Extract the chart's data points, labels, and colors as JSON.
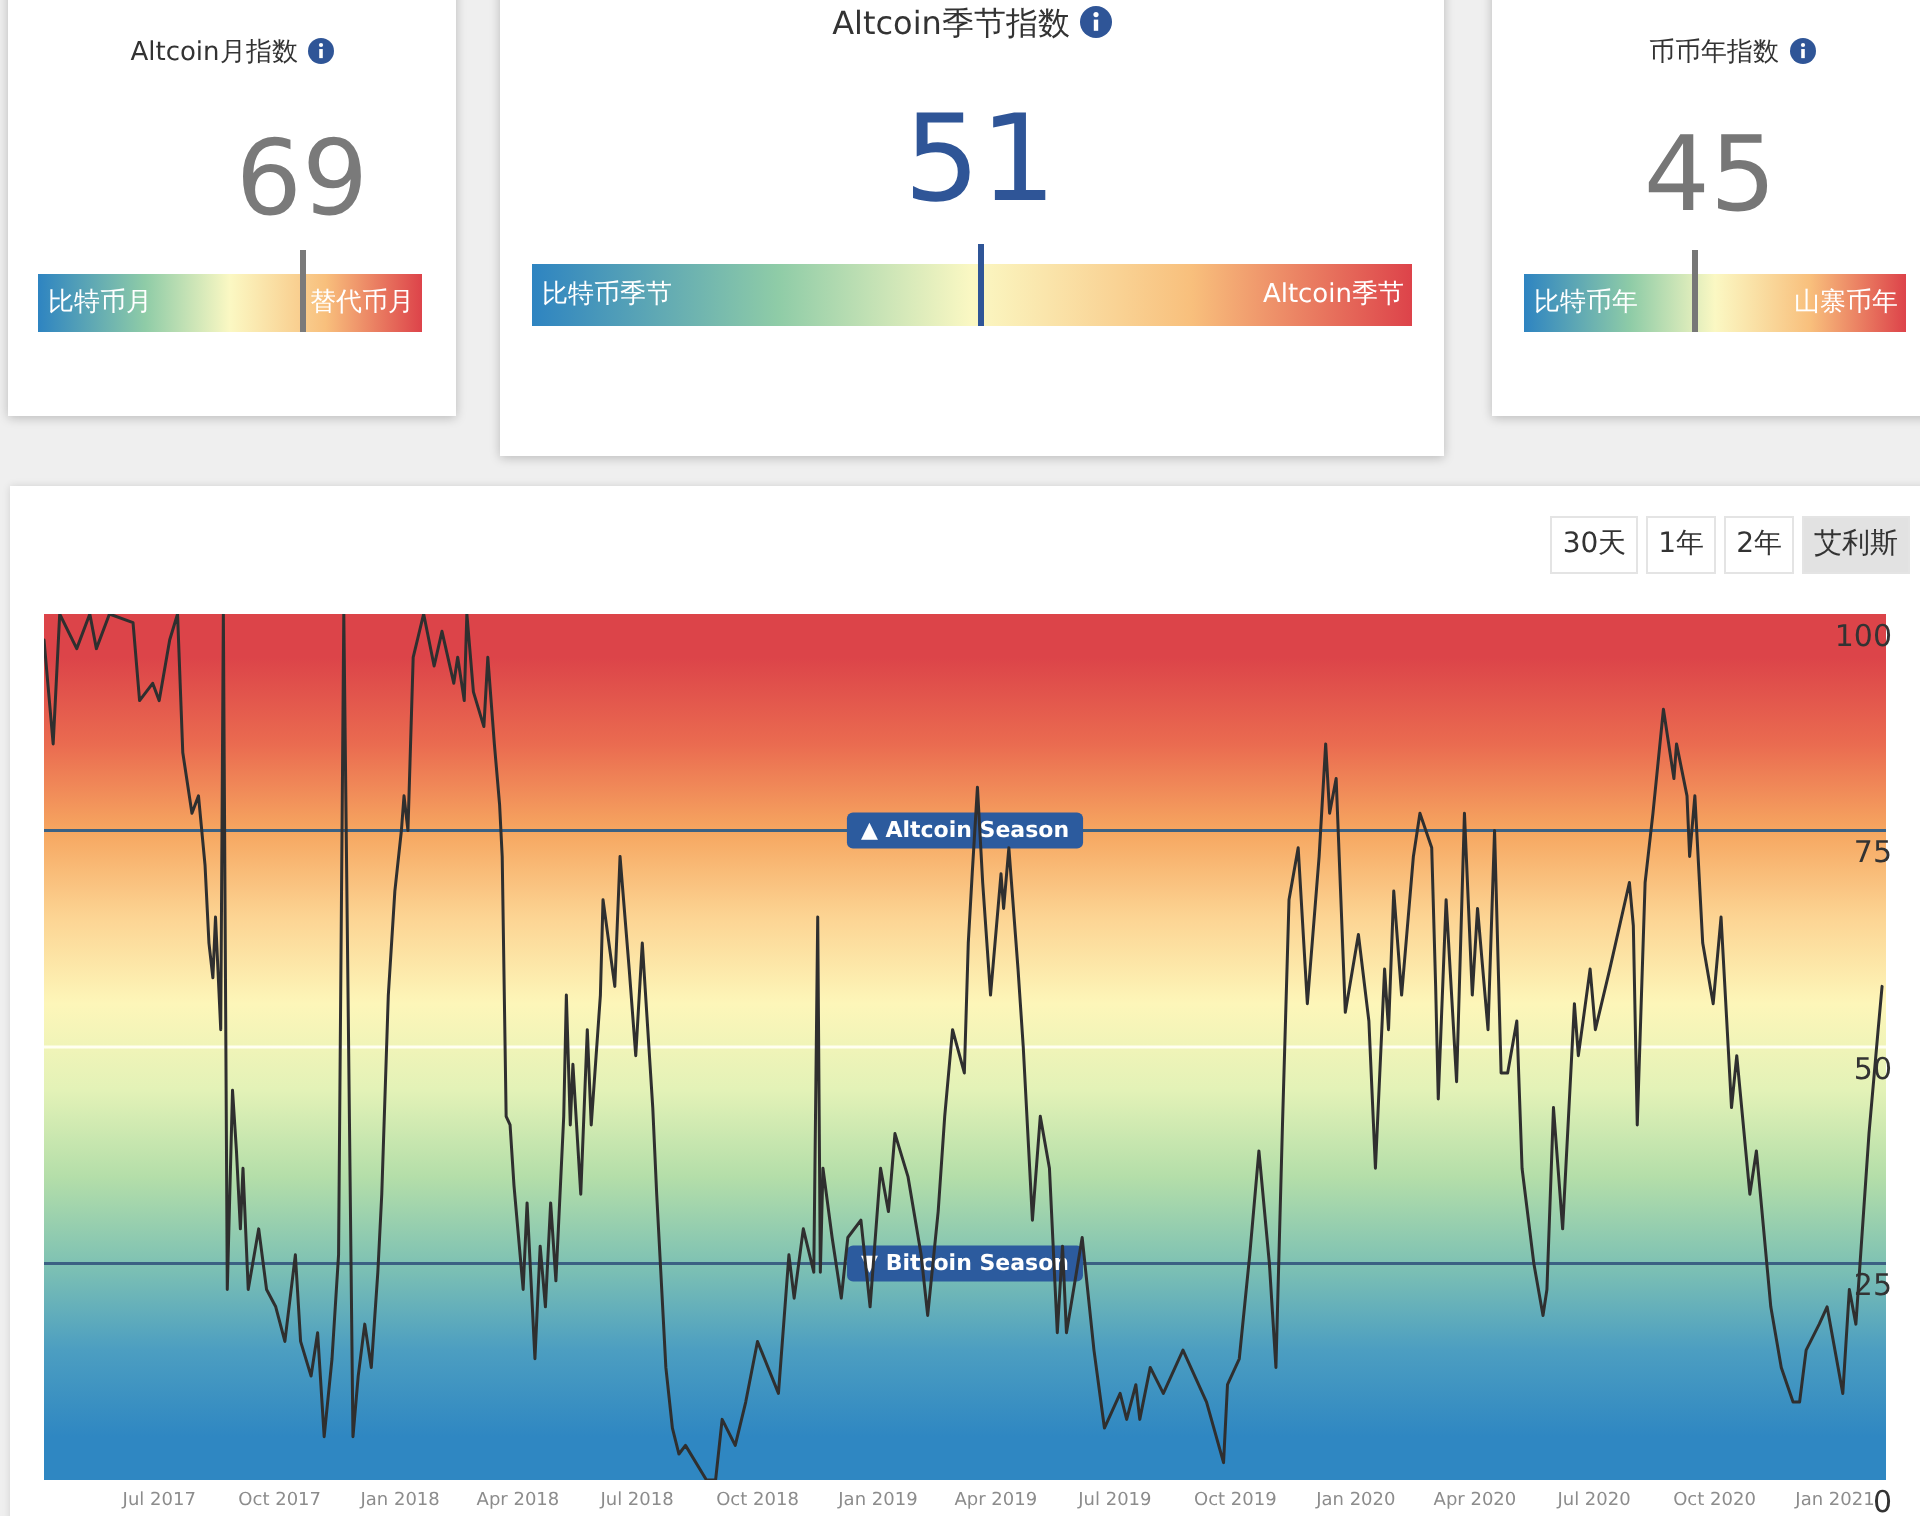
{
  "chart_data": [
    {
      "type": "other",
      "title": "Altcoin月指数",
      "values": [
        69
      ],
      "data_labels": true,
      "annotations": [
        "比特币月",
        "替代币月"
      ]
    },
    {
      "type": "other",
      "title": "Altcoin季节指数",
      "values": [
        51
      ],
      "data_labels": true,
      "annotations": [
        "比特币季节",
        "Altcoin季节"
      ]
    },
    {
      "type": "other",
      "title": "币币年指数",
      "values": [
        45
      ],
      "data_labels": true,
      "annotations": [
        "比特币年",
        "山寨币年"
      ]
    },
    {
      "type": "line",
      "x": [
        "2017-04-04",
        "2017-04-11",
        "2017-04-16",
        "2017-04-29",
        "2017-05-09",
        "2017-05-14",
        "2017-05-24",
        "2017-06-11",
        "2017-06-16",
        "2017-06-26",
        "2017-07-01",
        "2017-07-09",
        "2017-07-15",
        "2017-07-19",
        "2017-07-22",
        "2017-07-26",
        "2017-07-31",
        "2017-08-05",
        "2017-08-08",
        "2017-08-11",
        "2017-08-13",
        "2017-08-17",
        "2017-08-19",
        "2017-08-22",
        "2017-08-26",
        "2017-08-29",
        "2017-09-01",
        "2017-09-03",
        "2017-09-07",
        "2017-09-15",
        "2017-09-21",
        "2017-09-28",
        "2017-10-05",
        "2017-10-13",
        "2017-10-17",
        "2017-10-25",
        "2017-10-30",
        "2017-11-04",
        "2017-11-10",
        "2017-11-15",
        "2017-11-19",
        "2017-11-26",
        "2017-11-30",
        "2017-12-05",
        "2017-12-10",
        "2017-12-15",
        "2017-12-18",
        "2017-12-23",
        "2017-12-28",
        "2018-01-02",
        "2018-01-04",
        "2018-01-07",
        "2018-01-11",
        "2018-01-19",
        "2018-01-27",
        "2018-02-02",
        "2018-02-11",
        "2018-02-14",
        "2018-02-19",
        "2018-02-21",
        "2018-02-26",
        "2018-03-06",
        "2018-03-09",
        "2018-03-14",
        "2018-03-18",
        "2018-03-20",
        "2018-03-23",
        "2018-03-26",
        "2018-03-29",
        "2018-04-05",
        "2018-04-08",
        "2018-04-14",
        "2018-04-18",
        "2018-04-22",
        "2018-04-26",
        "2018-04-30",
        "2018-05-06",
        "2018-05-08",
        "2018-05-11",
        "2018-05-13",
        "2018-05-19",
        "2018-05-24",
        "2018-05-27",
        "2018-06-03",
        "2018-06-05",
        "2018-06-14",
        "2018-06-18",
        "2018-06-25",
        "2018-06-30",
        "2018-07-05",
        "2018-07-13",
        "2018-07-16",
        "2018-07-23",
        "2018-07-28",
        "2018-08-02",
        "2018-08-07",
        "2018-08-23",
        "2018-08-30",
        "2018-09-04",
        "2018-09-14",
        "2018-09-22",
        "2018-10-01",
        "2018-10-17",
        "2018-10-25",
        "2018-10-29",
        "2018-11-05",
        "2018-11-13",
        "2018-11-16",
        "2018-11-18",
        "2018-11-20",
        "2018-11-27",
        "2018-12-04",
        "2018-12-09",
        "2018-12-19",
        "2018-12-26",
        "2019-01-03",
        "2019-01-09",
        "2019-01-14",
        "2019-01-24",
        "2019-02-03",
        "2019-02-08",
        "2019-02-16",
        "2019-02-21",
        "2019-02-27",
        "2019-03-08",
        "2019-03-11",
        "2019-03-14",
        "2019-03-18",
        "2019-03-22",
        "2019-03-28",
        "2019-04-05",
        "2019-04-07",
        "2019-04-11",
        "2019-04-18",
        "2019-04-22",
        "2019-04-29",
        "2019-05-05",
        "2019-05-12",
        "2019-05-18",
        "2019-05-22",
        "2019-05-25",
        "2019-06-06",
        "2019-06-15",
        "2019-06-23",
        "2019-07-05",
        "2019-07-10",
        "2019-07-17",
        "2019-07-20",
        "2019-07-28",
        "2019-08-07",
        "2019-08-22",
        "2019-09-09",
        "2019-09-22",
        "2019-09-25",
        "2019-10-04",
        "2019-10-12",
        "2019-10-19",
        "2019-10-27",
        "2019-11-01",
        "2019-11-06",
        "2019-11-11",
        "2019-11-18",
        "2019-11-25",
        "2019-12-04",
        "2019-12-09",
        "2019-12-12",
        "2019-12-17",
        "2019-12-24",
        "2020-01-03",
        "2020-01-11",
        "2020-01-16",
        "2020-01-23",
        "2020-01-26",
        "2020-01-30",
        "2020-02-05",
        "2020-02-14",
        "2020-02-19",
        "2020-02-28",
        "2020-03-02",
        "2020-03-04",
        "2020-03-10",
        "2020-03-18",
        "2020-03-24",
        "2020-03-30",
        "2020-04-03",
        "2020-04-11",
        "2020-04-16",
        "2020-04-21",
        "2020-04-26",
        "2020-05-03",
        "2020-05-07",
        "2020-05-16",
        "2020-05-23",
        "2020-05-26",
        "2020-05-31",
        "2020-06-07",
        "2020-06-16",
        "2020-06-19",
        "2020-06-28",
        "2020-07-02",
        "2020-07-13",
        "2020-07-28",
        "2020-07-31",
        "2020-08-03",
        "2020-08-09",
        "2020-08-15",
        "2020-08-23",
        "2020-08-31",
        "2020-09-02",
        "2020-09-10",
        "2020-09-12",
        "2020-09-16",
        "2020-09-22",
        "2020-09-30",
        "2020-10-06",
        "2020-10-14",
        "2020-10-18",
        "2020-10-28",
        "2020-11-02",
        "2020-11-13",
        "2020-11-21",
        "2020-11-30",
        "2020-12-05",
        "2020-12-10",
        "2020-12-20",
        "2020-12-26",
        "2021-01-07",
        "2021-01-12",
        "2021-01-17",
        "2021-01-27",
        "2021-02-03",
        "2021-02-06"
      ],
      "series": [
        {
          "color": "#2f2f2f",
          "values": [
            97,
            85,
            100,
            96,
            100,
            96,
            100,
            99,
            90,
            92,
            90,
            97,
            100,
            84,
            81,
            77,
            79,
            71,
            62,
            58,
            65,
            52,
            100,
            22,
            45,
            38,
            29,
            36,
            22,
            29,
            22,
            20,
            16,
            26,
            16,
            12,
            17,
            5,
            14,
            26,
            100,
            5,
            12,
            18,
            13,
            24,
            33,
            56,
            68,
            75,
            79,
            75,
            95,
            100,
            94,
            98,
            92,
            95,
            90,
            100,
            91,
            87,
            95,
            85,
            78,
            72,
            42,
            41,
            34,
            22,
            32,
            14,
            27,
            20,
            32,
            23,
            42,
            56,
            41,
            48,
            33,
            52,
            41,
            56,
            67,
            57,
            72,
            59,
            49,
            62,
            43,
            33,
            13,
            6,
            3,
            4,
            0,
            0,
            7,
            4,
            9,
            16,
            10,
            26,
            21,
            29,
            24,
            65,
            24,
            36,
            28,
            21,
            28,
            30,
            20,
            36,
            31,
            40,
            35,
            26,
            19,
            31,
            42,
            52,
            47,
            62,
            70,
            80,
            69,
            56,
            70,
            66,
            73,
            59,
            50,
            30,
            42,
            36,
            17,
            27,
            17,
            28,
            15,
            6,
            10,
            7,
            11,
            7,
            13,
            10,
            15,
            9,
            2,
            11,
            14,
            26,
            38,
            25,
            13,
            41,
            67,
            73,
            55,
            72,
            85,
            77,
            81,
            54,
            63,
            53,
            36,
            59,
            52,
            68,
            56,
            72,
            77,
            73,
            57,
            44,
            67,
            46,
            77,
            56,
            66,
            52,
            75,
            47,
            47,
            53,
            36,
            25,
            19,
            22,
            43,
            29,
            55,
            49,
            59,
            52,
            59,
            69,
            64,
            41,
            69,
            77,
            89,
            81,
            85,
            79,
            72,
            79,
            62,
            55,
            65,
            43,
            49,
            33,
            38,
            20,
            13,
            9,
            9,
            15,
            18,
            20,
            10,
            22,
            18,
            40,
            52,
            57
          ]
        }
      ],
      "xlim": [
        "2017-04-04",
        "2021-02-09"
      ],
      "xticks": [
        {
          "value": "2017-07-01",
          "label": "Jul 2017"
        },
        {
          "value": "2017-10-01",
          "label": "Oct 2017"
        },
        {
          "value": "2018-01-01",
          "label": "Jan 2018"
        },
        {
          "value": "2018-04-01",
          "label": "Apr 2018"
        },
        {
          "value": "2018-07-01",
          "label": "Jul 2018"
        },
        {
          "value": "2018-10-01",
          "label": "Oct 2018"
        },
        {
          "value": "2019-01-01",
          "label": "Jan 2019"
        },
        {
          "value": "2019-04-01",
          "label": "Apr 2019"
        },
        {
          "value": "2019-07-01",
          "label": "Jul 2019"
        },
        {
          "value": "2019-10-01",
          "label": "Oct 2019"
        },
        {
          "value": "2020-01-01",
          "label": "Jan 2020"
        },
        {
          "value": "2020-04-01",
          "label": "Apr 2020"
        },
        {
          "value": "2020-07-01",
          "label": "Jul 2020"
        },
        {
          "value": "2020-10-01",
          "label": "Oct 2020"
        },
        {
          "value": "2021-01-01",
          "label": "Jan 2021"
        }
      ],
      "ylim": [
        0,
        100
      ],
      "yticks": [
        0,
        25,
        50,
        75,
        100
      ],
      "ref_lines": [
        {
          "axis": "y",
          "value": 75,
          "label": "▲ Altcoin Season",
          "color": "#3b6183"
        },
        {
          "axis": "y",
          "value": 50,
          "color": "#fffff0"
        },
        {
          "axis": "y",
          "value": 25,
          "label": "▼ Bitcoin Season",
          "color": "#3b6183"
        }
      ],
      "bands": [
        {
          "axis": "y",
          "from": 0,
          "to": 10,
          "color": "#2f87c2"
        },
        {
          "axis": "y",
          "from": 10,
          "to": 20,
          "color": "#4c9ec1"
        },
        {
          "axis": "y",
          "from": 20,
          "to": 30,
          "color": "#7fc2b3"
        },
        {
          "axis": "y",
          "from": 30,
          "to": 40,
          "color": "#b4dea9"
        },
        {
          "axis": "y",
          "from": 40,
          "to": 50,
          "color": "#e3f2b7"
        },
        {
          "axis": "y",
          "from": 50,
          "to": 60,
          "color": "#fdf6b9"
        },
        {
          "axis": "y",
          "from": 60,
          "to": 70,
          "color": "#fcd493"
        },
        {
          "axis": "y",
          "from": 70,
          "to": 80,
          "color": "#f6a660"
        },
        {
          "axis": "y",
          "from": 80,
          "to": 90,
          "color": "#ea6b50"
        },
        {
          "axis": "y",
          "from": 90,
          "to": 100,
          "color": "#dc4449"
        }
      ],
      "annotations": [
        "30天",
        "1年",
        "2年",
        "艾利斯"
      ]
    }
  ]
}
